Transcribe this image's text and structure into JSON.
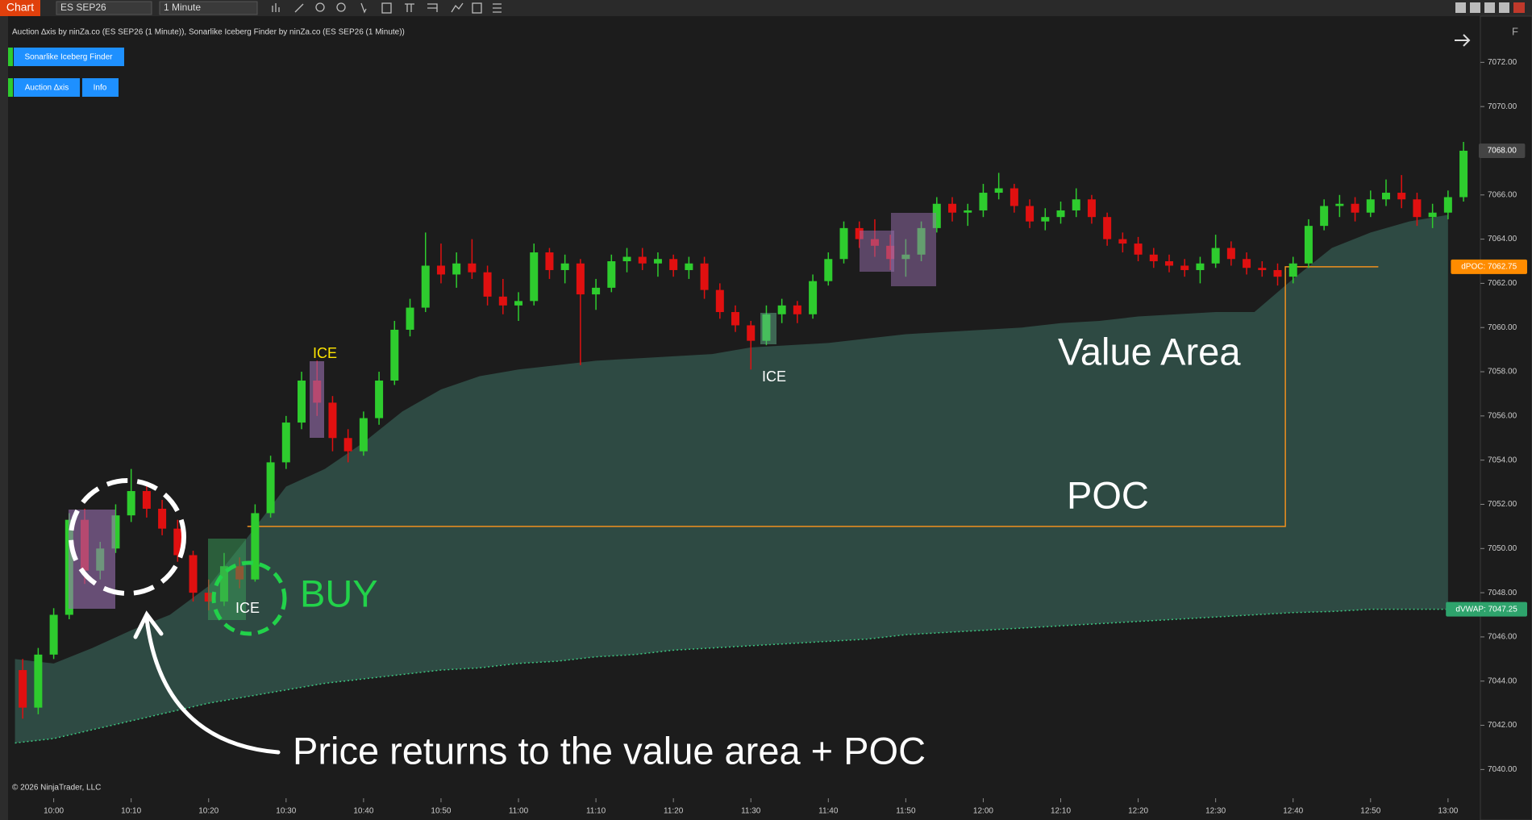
{
  "toolbar": {
    "tab": "Chart",
    "instrument": "ES SEP26",
    "interval": "1 Minute",
    "panel_button": "F"
  },
  "indicator_label": "Auction ∆xis by ninZa.co (ES SEP26 (1 Minute)), Sonarlike Iceberg Finder by ninZa.co (ES SEP26 (1 Minute))",
  "buttons": [
    "Sonarlike Iceberg Finder",
    "Auction ∆xis",
    "Info"
  ],
  "copyright": "© 2026 NinjaTrader, LLC",
  "annotations": {
    "value_area": "Value Area",
    "poc": "POC",
    "buy": "BUY",
    "note": "Price returns to the value area + POC",
    "ice": [
      "ICE",
      "ICE",
      "ICE"
    ]
  },
  "chart_data": {
    "type": "candlestick",
    "up_color": "#2ecc2e",
    "down_color": "#e01010",
    "ylim": [
      7038.7,
      7073.8
    ],
    "yticks": [
      {
        "value": 7040,
        "label": "7040.00"
      },
      {
        "value": 7042,
        "label": "7042.00"
      },
      {
        "value": 7044,
        "label": "7044.00"
      },
      {
        "value": 7046,
        "label": "7046.00"
      },
      {
        "value": 7048,
        "label": "7048.00"
      },
      {
        "value": 7050,
        "label": "7050.00"
      },
      {
        "value": 7052,
        "label": "7052.00"
      },
      {
        "value": 7054,
        "label": "7054.00"
      },
      {
        "value": 7056,
        "label": "7056.00"
      },
      {
        "value": 7058,
        "label": "7058.00"
      },
      {
        "value": 7060,
        "label": "7060.00"
      },
      {
        "value": 7062,
        "label": "7062.00"
      },
      {
        "value": 7064,
        "label": "7064.00"
      },
      {
        "value": 7066,
        "label": "7066.00"
      },
      {
        "value": 7068,
        "label": "7068.00"
      },
      {
        "value": 7070,
        "label": "7070.00"
      },
      {
        "value": 7072,
        "label": "7072.00"
      }
    ],
    "xticks": [
      "10:00",
      "10:10",
      "10:20",
      "10:30",
      "10:40",
      "10:50",
      "11:00",
      "11:10",
      "11:20",
      "11:30",
      "11:40",
      "11:50",
      "12:00",
      "12:10",
      "12:20",
      "12:30",
      "12:40",
      "12:50",
      "13:00"
    ],
    "candles": {
      "x": [
        "09:56",
        "09:58",
        "10:00",
        "10:02",
        "10:04",
        "10:06",
        "10:08",
        "10:10",
        "10:12",
        "10:14",
        "10:16",
        "10:18",
        "10:20",
        "10:22",
        "10:24",
        "10:26",
        "10:28",
        "10:30",
        "10:32",
        "10:34",
        "10:36",
        "10:38",
        "10:40",
        "10:42",
        "10:44",
        "10:46",
        "10:48",
        "10:50",
        "10:52",
        "10:54",
        "10:56",
        "10:58",
        "11:00",
        "11:02",
        "11:04",
        "11:06",
        "11:08",
        "11:10",
        "11:12",
        "11:14",
        "11:16",
        "11:18",
        "11:20",
        "11:22",
        "11:24",
        "11:26",
        "11:28",
        "11:30",
        "11:32",
        "11:34",
        "11:36",
        "11:38",
        "11:40",
        "11:42",
        "11:44",
        "11:46",
        "11:48",
        "11:50",
        "11:52",
        "11:54",
        "11:56",
        "11:58",
        "12:00",
        "12:02",
        "12:04",
        "12:06",
        "12:08",
        "12:10",
        "12:12",
        "12:14",
        "12:16",
        "12:18",
        "12:20",
        "12:22",
        "12:24",
        "12:26",
        "12:28",
        "12:30",
        "12:32",
        "12:34",
        "12:36",
        "12:38",
        "12:40",
        "12:42",
        "12:44",
        "12:46",
        "12:48",
        "12:50",
        "12:52",
        "12:54",
        "12:56",
        "12:58",
        "13:00",
        "13:02"
      ],
      "open": [
        7044.5,
        7042.8,
        7045.2,
        7047.0,
        7051.3,
        7049.0,
        7050.0,
        7051.5,
        7052.6,
        7051.8,
        7050.9,
        7049.7,
        7048.0,
        7047.6,
        7049.2,
        7048.6,
        7051.6,
        7053.9,
        7055.7,
        7057.6,
        7056.6,
        7055.0,
        7054.4,
        7055.9,
        7057.6,
        7059.9,
        7060.9,
        7062.8,
        7062.4,
        7062.9,
        7062.5,
        7061.4,
        7061.0,
        7061.2,
        7063.4,
        7062.6,
        7062.9,
        7061.5,
        7061.8,
        7063.0,
        7063.2,
        7062.9,
        7063.1,
        7062.6,
        7062.9,
        7061.7,
        7060.7,
        7060.1,
        7059.4,
        7060.6,
        7061.0,
        7060.6,
        7062.1,
        7063.1,
        7064.5,
        7064.0,
        7063.7,
        7063.1,
        7063.3,
        7064.5,
        7065.6,
        7065.2,
        7065.3,
        7066.1,
        7066.3,
        7065.5,
        7064.8,
        7065.0,
        7065.3,
        7065.8,
        7065.0,
        7064.0,
        7063.8,
        7063.3,
        7063.0,
        7062.8,
        7062.6,
        7062.9,
        7063.6,
        7063.1,
        7062.7,
        7062.6,
        7062.3,
        7062.9,
        7064.6,
        7065.5,
        7065.6,
        7065.2,
        7065.8,
        7066.1,
        7065.8,
        7065.0,
        7065.2,
        7065.9
      ],
      "high": [
        7045.0,
        7045.5,
        7047.3,
        7051.6,
        7051.8,
        7050.3,
        7052.0,
        7053.6,
        7053.0,
        7052.2,
        7051.3,
        7049.9,
        7048.6,
        7049.8,
        7049.6,
        7052.0,
        7054.2,
        7056.0,
        7058.0,
        7058.5,
        7056.9,
        7055.4,
        7056.2,
        7058.0,
        7060.3,
        7061.3,
        7064.3,
        7063.8,
        7063.4,
        7064.0,
        7062.8,
        7062.2,
        7061.6,
        7063.8,
        7063.6,
        7063.3,
        7063.1,
        7062.2,
        7063.3,
        7063.6,
        7063.6,
        7063.4,
        7063.3,
        7063.2,
        7063.2,
        7062.0,
        7061.0,
        7060.3,
        7061.0,
        7061.3,
        7061.2,
        7062.4,
        7063.4,
        7064.8,
        7064.8,
        7064.9,
        7064.2,
        7064.0,
        7064.8,
        7065.9,
        7065.9,
        7065.6,
        7066.5,
        7067.0,
        7066.5,
        7065.8,
        7065.4,
        7065.7,
        7066.3,
        7066.0,
        7065.2,
        7064.3,
        7064.1,
        7063.6,
        7063.3,
        7063.1,
        7063.2,
        7064.2,
        7063.9,
        7063.4,
        7063.0,
        7062.9,
        7063.2,
        7064.9,
        7065.8,
        7066.0,
        7065.9,
        7066.2,
        7066.7,
        7066.9,
        7066.1,
        7065.6,
        7066.2,
        7068.4
      ],
      "low": [
        7042.3,
        7042.5,
        7045.0,
        7046.8,
        7048.4,
        7048.6,
        7049.8,
        7051.2,
        7051.4,
        7050.6,
        7049.4,
        7047.6,
        7047.2,
        7047.4,
        7048.2,
        7048.5,
        7051.4,
        7053.6,
        7055.4,
        7056.0,
        7054.4,
        7053.9,
        7054.2,
        7055.6,
        7057.4,
        7059.6,
        7060.7,
        7062.0,
        7061.8,
        7062.2,
        7061.0,
        7060.6,
        7060.3,
        7061.0,
        7062.2,
        7062.0,
        7058.3,
        7060.8,
        7061.6,
        7062.5,
        7062.6,
        7062.3,
        7062.3,
        7062.2,
        7061.3,
        7060.4,
        7059.8,
        7058.1,
        7059.2,
        7060.2,
        7060.2,
        7060.4,
        7061.9,
        7062.9,
        7063.6,
        7063.2,
        7062.6,
        7062.3,
        7063.0,
        7064.3,
        7064.8,
        7064.6,
        7065.0,
        7065.8,
        7065.2,
        7064.5,
        7064.4,
        7064.7,
        7065.0,
        7064.7,
        7063.7,
        7063.4,
        7063.0,
        7062.7,
        7062.5,
        7062.3,
        7062.0,
        7062.7,
        7062.8,
        7062.4,
        7062.3,
        7061.9,
        7062.0,
        7062.7,
        7064.4,
        7065.0,
        7064.8,
        7065.0,
        7065.5,
        7065.4,
        7064.6,
        7064.5,
        7064.9,
        7065.7
      ],
      "close": [
        7042.8,
        7045.2,
        7047.0,
        7051.3,
        7049.0,
        7050.0,
        7051.5,
        7052.6,
        7051.8,
        7050.9,
        7049.7,
        7048.0,
        7047.6,
        7049.2,
        7048.6,
        7051.6,
        7053.9,
        7055.7,
        7057.6,
        7056.6,
        7055.0,
        7054.4,
        7055.9,
        7057.6,
        7059.9,
        7060.9,
        7062.8,
        7062.4,
        7062.9,
        7062.5,
        7061.4,
        7061.0,
        7061.2,
        7063.4,
        7062.6,
        7062.9,
        7061.5,
        7061.8,
        7063.0,
        7063.2,
        7062.9,
        7063.1,
        7062.6,
        7062.9,
        7061.7,
        7060.7,
        7060.1,
        7059.4,
        7060.6,
        7061.0,
        7060.6,
        7062.1,
        7063.1,
        7064.5,
        7064.0,
        7063.7,
        7063.1,
        7063.3,
        7064.5,
        7065.6,
        7065.2,
        7065.3,
        7066.1,
        7066.3,
        7065.5,
        7064.8,
        7065.0,
        7065.3,
        7065.8,
        7065.0,
        7064.0,
        7063.8,
        7063.3,
        7063.0,
        7062.8,
        7062.6,
        7062.9,
        7063.6,
        7063.1,
        7062.7,
        7062.6,
        7062.3,
        7062.9,
        7064.6,
        7065.5,
        7065.6,
        7065.2,
        7065.8,
        7066.1,
        7065.8,
        7065.0,
        7065.2,
        7065.9,
        7068.0
      ]
    },
    "bands": {
      "x": [
        "09:55",
        "10:00",
        "10:05",
        "10:10",
        "10:15",
        "10:20",
        "10:25",
        "10:30",
        "10:35",
        "10:40",
        "10:45",
        "10:50",
        "10:55",
        "11:00",
        "11:05",
        "11:10",
        "11:15",
        "11:20",
        "11:25",
        "11:30",
        "11:35",
        "11:40",
        "11:45",
        "11:50",
        "11:55",
        "12:00",
        "12:05",
        "12:10",
        "12:15",
        "12:20",
        "12:25",
        "12:30",
        "12:35",
        "12:40",
        "12:45",
        "12:50",
        "12:55",
        "13:00"
      ],
      "value_area_high": [
        7045.0,
        7044.8,
        7045.5,
        7046.3,
        7047.0,
        7048.3,
        7050.5,
        7052.8,
        7053.6,
        7054.8,
        7056.2,
        7057.2,
        7057.8,
        7058.1,
        7058.3,
        7058.5,
        7058.6,
        7058.7,
        7058.8,
        7059.1,
        7059.2,
        7059.3,
        7059.5,
        7059.7,
        7059.8,
        7059.9,
        7060.0,
        7060.2,
        7060.3,
        7060.5,
        7060.6,
        7060.7,
        7060.7,
        7062.2,
        7063.6,
        7064.3,
        7064.8,
        7065.1
      ],
      "vwap": [
        7041.2,
        7041.4,
        7041.8,
        7042.2,
        7042.6,
        7043.0,
        7043.3,
        7043.6,
        7043.9,
        7044.1,
        7044.3,
        7044.5,
        7044.6,
        7044.8,
        7044.9,
        7045.1,
        7045.2,
        7045.4,
        7045.5,
        7045.6,
        7045.7,
        7045.8,
        7045.9,
        7046.1,
        7046.2,
        7046.3,
        7046.4,
        7046.5,
        7046.6,
        7046.7,
        7046.8,
        7046.9,
        7047.0,
        7047.1,
        7047.15,
        7047.25,
        7047.25,
        7047.25
      ],
      "area_color": "#2e4a43",
      "vwap_color": "#3cc47f"
    },
    "poc": {
      "x": [
        "10:25",
        "12:39",
        "12:39",
        "12:51"
      ],
      "values": [
        7051,
        7051,
        7062.75,
        7062.75
      ],
      "color": "#f0901e"
    },
    "price_tags": [
      {
        "label": "7068.00",
        "value": 7068,
        "color": "#444444"
      },
      {
        "label": "dPOC: 7062.75",
        "value": 7062.75,
        "color": "#ff8c00"
      },
      {
        "label": "dVWAP: 7047.25",
        "value": 7047.25,
        "color": "#2ea36c"
      }
    ]
  }
}
